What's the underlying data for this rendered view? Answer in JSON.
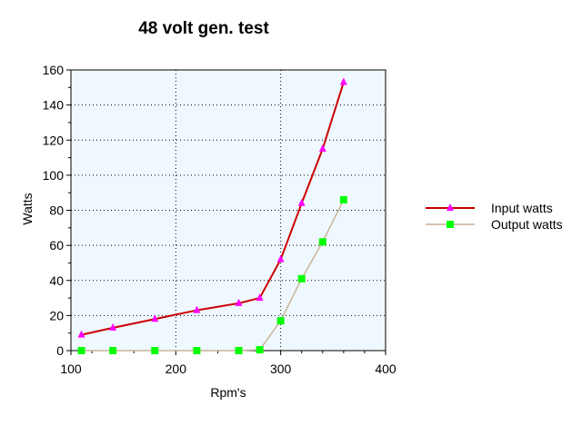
{
  "chart_data": {
    "type": "line",
    "title": "48 volt  gen. test",
    "xlabel": "Rpm's",
    "ylabel": "Watts",
    "xlim": [
      100,
      400
    ],
    "ylim": [
      0,
      160
    ],
    "x_ticks": [
      "100",
      "200",
      "300",
      "400"
    ],
    "y_ticks": [
      "0",
      "20",
      "40",
      "60",
      "80",
      "100",
      "120",
      "140",
      "160"
    ],
    "grid": true,
    "plot_background": "#f0f8ff",
    "legend_position": "right",
    "series": [
      {
        "name": "Input watts",
        "color": "#cc0000",
        "marker": "triangle",
        "marker_color": "#ff00ff",
        "x": [
          110,
          140,
          180,
          220,
          260,
          280,
          300,
          320,
          340,
          360
        ],
        "values": [
          9,
          13,
          18,
          23,
          27,
          30,
          52,
          84,
          115,
          153
        ]
      },
      {
        "name": "Output watts",
        "color": "#c8b496",
        "marker": "square",
        "marker_color": "#00ff00",
        "x": [
          110,
          140,
          180,
          220,
          260,
          280,
          300,
          320,
          340,
          360
        ],
        "values": [
          0,
          0,
          0,
          0,
          0,
          0.5,
          17,
          41,
          62,
          86
        ]
      }
    ]
  }
}
